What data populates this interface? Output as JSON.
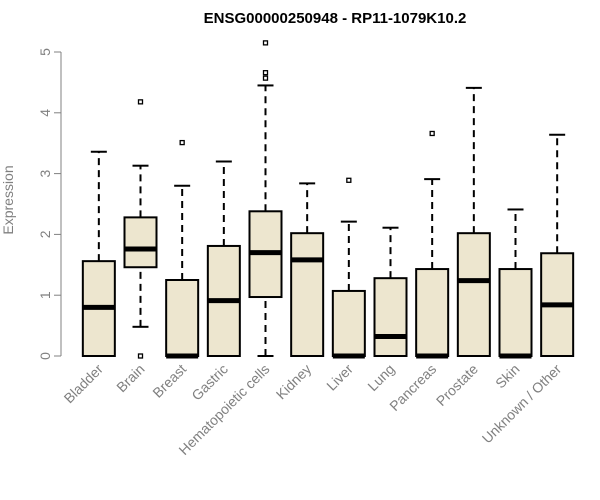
{
  "chart_data": {
    "type": "boxplot",
    "title": "ENSG00000250948 - RP11-1079K10.2",
    "xlabel": "",
    "ylabel": "Expression",
    "ylim": [
      0,
      5
    ],
    "yticks": [
      "0",
      "1",
      "2",
      "3",
      "4",
      "5"
    ],
    "grid": false,
    "legend": "none",
    "colors": {
      "box_fill": "#ede6cf",
      "stroke": "#000000",
      "axis": "#808080"
    },
    "categories": [
      "Bladder",
      "Brain",
      "Breast",
      "Gastric",
      "Hematopoietic cells",
      "Kidney",
      "Liver",
      "Lung",
      "Pancreas",
      "Prostate",
      "Skin",
      "Unknown / Other"
    ],
    "boxes": [
      {
        "min": 0,
        "q1": 0,
        "median": 0.8,
        "q3": 1.56,
        "max": 3.36,
        "outliers": []
      },
      {
        "min": 0.48,
        "q1": 1.46,
        "median": 1.76,
        "q3": 2.28,
        "max": 3.13,
        "outliers": [
          0,
          4.18
        ]
      },
      {
        "min": 0,
        "q1": 0,
        "median": 0,
        "q3": 1.25,
        "max": 2.8,
        "outliers": [
          3.51
        ]
      },
      {
        "min": 0,
        "q1": 0,
        "median": 0.91,
        "q3": 1.81,
        "max": 3.2,
        "outliers": []
      },
      {
        "min": 0,
        "q1": 0.97,
        "median": 1.7,
        "q3": 2.38,
        "max": 4.45,
        "outliers": [
          4.57,
          4.66,
          5.15
        ]
      },
      {
        "min": 0,
        "q1": 0,
        "median": 1.58,
        "q3": 2.02,
        "max": 2.84,
        "outliers": []
      },
      {
        "min": 0,
        "q1": 0,
        "median": 0,
        "q3": 1.07,
        "max": 2.21,
        "outliers": [
          2.89
        ]
      },
      {
        "min": 0,
        "q1": 0,
        "median": 0.32,
        "q3": 1.28,
        "max": 2.11,
        "outliers": []
      },
      {
        "min": 0,
        "q1": 0,
        "median": 0,
        "q3": 1.43,
        "max": 2.91,
        "outliers": [
          3.66
        ]
      },
      {
        "min": 0,
        "q1": 0,
        "median": 1.24,
        "q3": 2.02,
        "max": 4.41,
        "outliers": []
      },
      {
        "min": 0,
        "q1": 0,
        "median": 0,
        "q3": 1.43,
        "max": 2.41,
        "outliers": []
      },
      {
        "min": 0,
        "q1": 0,
        "median": 0.84,
        "q3": 1.69,
        "max": 3.64,
        "outliers": []
      }
    ]
  }
}
